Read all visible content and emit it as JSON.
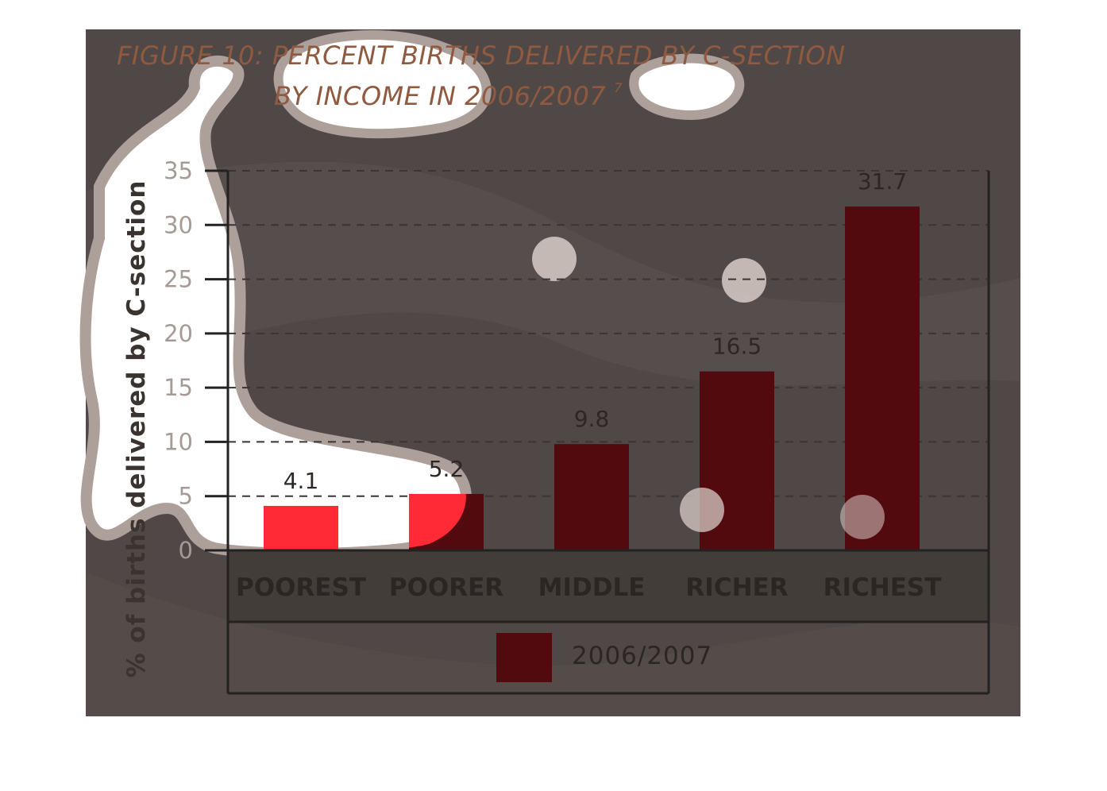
{
  "chart_data": {
    "type": "bar",
    "title_line1": "FIGURE 10: PERCENT BIRTHS DELIVERED BY C-SECTION",
    "title_line2": "BY INCOME IN 2006/2007",
    "title_footnote": "7",
    "ylabel": "% of births delivered by C-section",
    "xlabel": "",
    "ylim": [
      0,
      35
    ],
    "yticks": [
      0,
      5,
      10,
      15,
      20,
      25,
      30,
      35
    ],
    "grid": "horizontal dashed",
    "categories": [
      "POOREST",
      "POORER",
      "MIDDLE",
      "RICHER",
      "RICHEST"
    ],
    "series": [
      {
        "name": "2006/2007",
        "values": [
          4.1,
          5.2,
          9.8,
          16.5,
          31.7
        ],
        "color": "#520a0e"
      }
    ],
    "data_labels": [
      "4.1",
      "5.2",
      "9.8",
      "16.5",
      "31.7"
    ],
    "legend_position": "bottom"
  },
  "colors": {
    "panel_background": "#504846",
    "bar": "#520a0e",
    "bar_highlight": "#ff2a36",
    "title": "#8f5a3f",
    "axis": "#222222"
  }
}
